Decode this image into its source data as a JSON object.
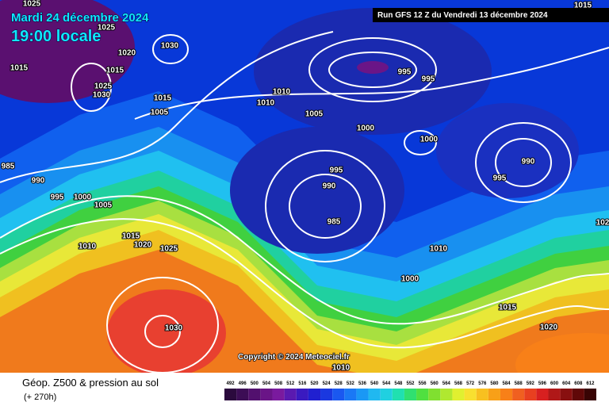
{
  "header": {
    "date": "Mardi 24 décembre 2024",
    "time": "19:00 locale",
    "run": "Run GFS 12 Z du Vendredi 13 décembre 2024"
  },
  "map": {
    "isobar_labels": [
      1025,
      1025,
      1020,
      1030,
      1015,
      1015,
      1025,
      1030,
      1015,
      1010,
      1010,
      1005,
      1005,
      995,
      995,
      1000,
      1000,
      985,
      990,
      995,
      1000,
      1005,
      995,
      990,
      985,
      990,
      995,
      1015,
      1010,
      1020,
      1025,
      1010,
      1000,
      1015,
      1020,
      1030,
      1010,
      1015,
      102
    ],
    "copyright": "Copyright © 2024 Meteociel.fr"
  },
  "legend": {
    "title": "Géop. Z500 & pression au sol",
    "lead": "(+ 270h)",
    "scale": [
      492,
      496,
      500,
      504,
      508,
      512,
      516,
      520,
      524,
      528,
      532,
      536,
      540,
      544,
      548,
      552,
      556,
      560,
      564,
      568,
      572,
      576,
      580,
      584,
      588,
      592,
      596,
      600,
      604,
      608,
      612
    ],
    "colors": [
      "#2b0a3d",
      "#3c0d55",
      "#52106e",
      "#6a1587",
      "#7a1a9e",
      "#5a1ab0",
      "#3a1ac0",
      "#2020d0",
      "#1a38e0",
      "#1a58f0",
      "#1a78f5",
      "#1a98f5",
      "#20b8f0",
      "#20d0e0",
      "#20e0b0",
      "#30e070",
      "#50e040",
      "#80e030",
      "#b0e830",
      "#e0f030",
      "#f8e030",
      "#f8c020",
      "#f8a018",
      "#f88018",
      "#f06020",
      "#e84020",
      "#d82020",
      "#b01818",
      "#881010",
      "#600808",
      "#380404"
    ]
  }
}
